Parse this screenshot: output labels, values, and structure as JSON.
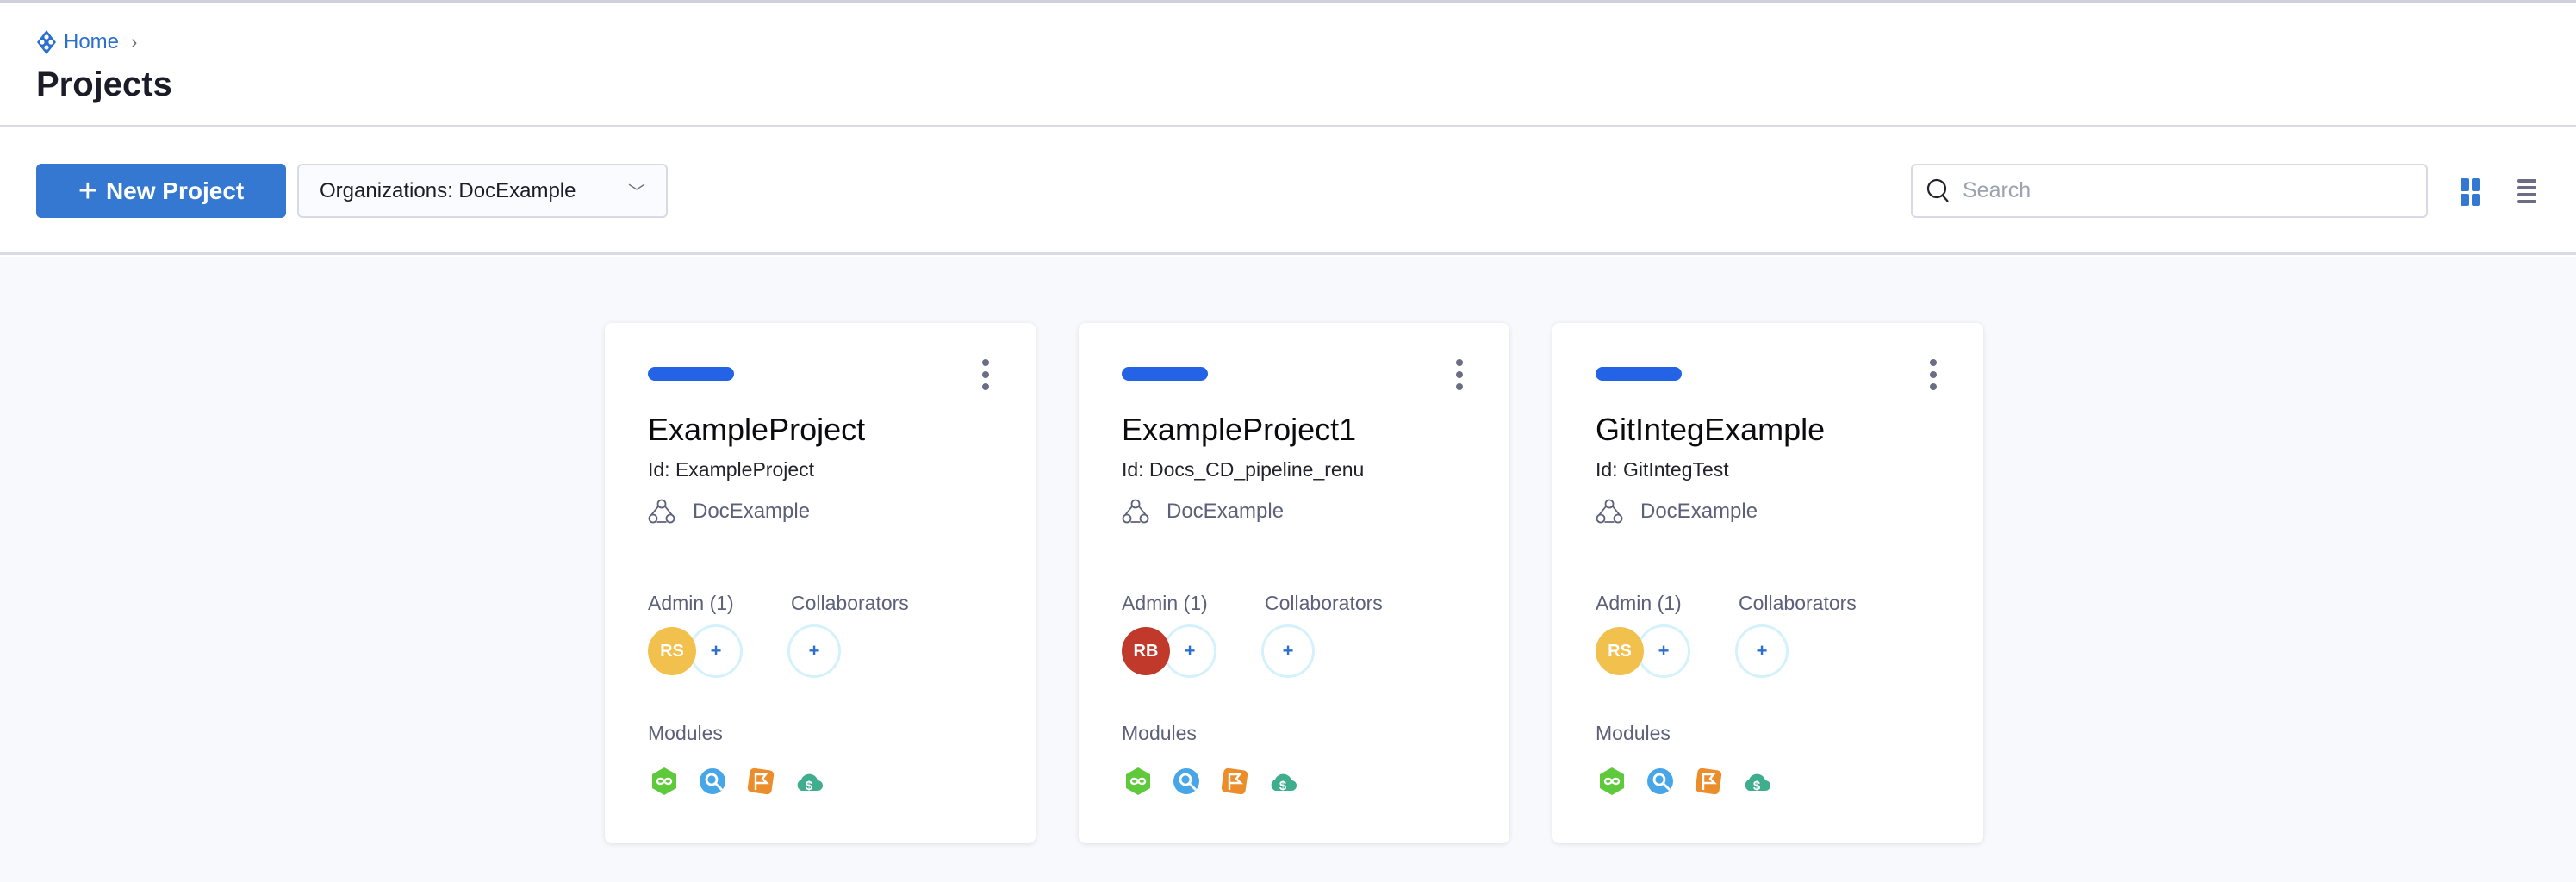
{
  "breadcrumb": {
    "home": "Home"
  },
  "page_title": "Projects",
  "toolbar": {
    "new_project": "New Project",
    "org_filter": "Organizations: DocExample",
    "search_placeholder": "Search",
    "view": "grid"
  },
  "colors": {
    "accent": "#3478d1",
    "card_bar": "#2463e6"
  },
  "projects": [
    {
      "name": "ExampleProject",
      "id": "Id: ExampleProject",
      "org": "DocExample",
      "admin_label": "Admin (1)",
      "collab_label": "Collaborators",
      "admin": {
        "initials": "RS",
        "color": "#f2c04d"
      },
      "modules_label": "Modules",
      "modules": [
        "cd-icon",
        "ci-icon",
        "ff-icon",
        "ccm-icon"
      ]
    },
    {
      "name": "ExampleProject1",
      "id": "Id: Docs_CD_pipeline_renu",
      "org": "DocExample",
      "admin_label": "Admin (1)",
      "collab_label": "Collaborators",
      "admin": {
        "initials": "RB",
        "color": "#c0392b"
      },
      "modules_label": "Modules",
      "modules": [
        "cd-icon",
        "ci-icon",
        "ff-icon",
        "ccm-icon"
      ]
    },
    {
      "name": "GitIntegExample",
      "id": "Id: GitIntegTest",
      "org": "DocExample",
      "admin_label": "Admin (1)",
      "collab_label": "Collaborators",
      "admin": {
        "initials": "RS",
        "color": "#f2c04d"
      },
      "modules_label": "Modules",
      "modules": [
        "cd-icon",
        "ci-icon",
        "ff-icon",
        "ccm-icon"
      ]
    }
  ],
  "add_symbol": "+"
}
